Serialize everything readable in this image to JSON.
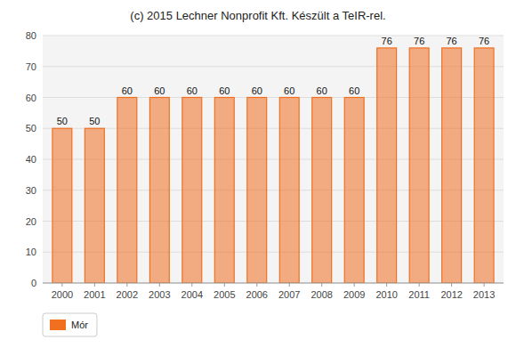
{
  "chart_data": {
    "type": "bar",
    "title": "(c) 2015 Lechner Nonprofit Kft. Készült a TeIR-rel.",
    "categories": [
      2000,
      2001,
      2002,
      2003,
      2004,
      2005,
      2006,
      2007,
      2008,
      2009,
      2010,
      2011,
      2012,
      2013
    ],
    "series": [
      {
        "name": "Mór",
        "color": "#f07020",
        "values": [
          50,
          50,
          60,
          60,
          60,
          60,
          60,
          60,
          60,
          60,
          76,
          76,
          76,
          76
        ]
      }
    ],
    "ylim": [
      0,
      80
    ],
    "yticks": [
      0,
      10,
      20,
      30,
      40,
      50,
      60,
      70,
      80
    ],
    "grid": true,
    "data_labels": true,
    "legend": "lower left"
  }
}
